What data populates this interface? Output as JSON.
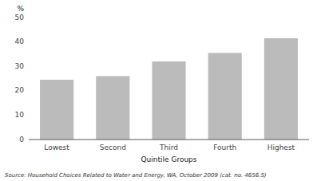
{
  "chart_data": {
    "type": "bar",
    "categories": [
      "Lowest",
      "Second",
      "Third",
      "Fourth",
      "Highest"
    ],
    "values": [
      24.5,
      26.0,
      32.0,
      35.5,
      41.5
    ],
    "color": "#bbbbbb",
    "ylim": [
      0,
      50
    ],
    "yticks": [
      0,
      10,
      20,
      30,
      40,
      50
    ],
    "y_label": "%",
    "x_label": "Quintile Groups",
    "source": "Source: Household Choices Related to Water and Energy, WA, October 2009 (cat. no. 4656.5)",
    "grid": false
  }
}
